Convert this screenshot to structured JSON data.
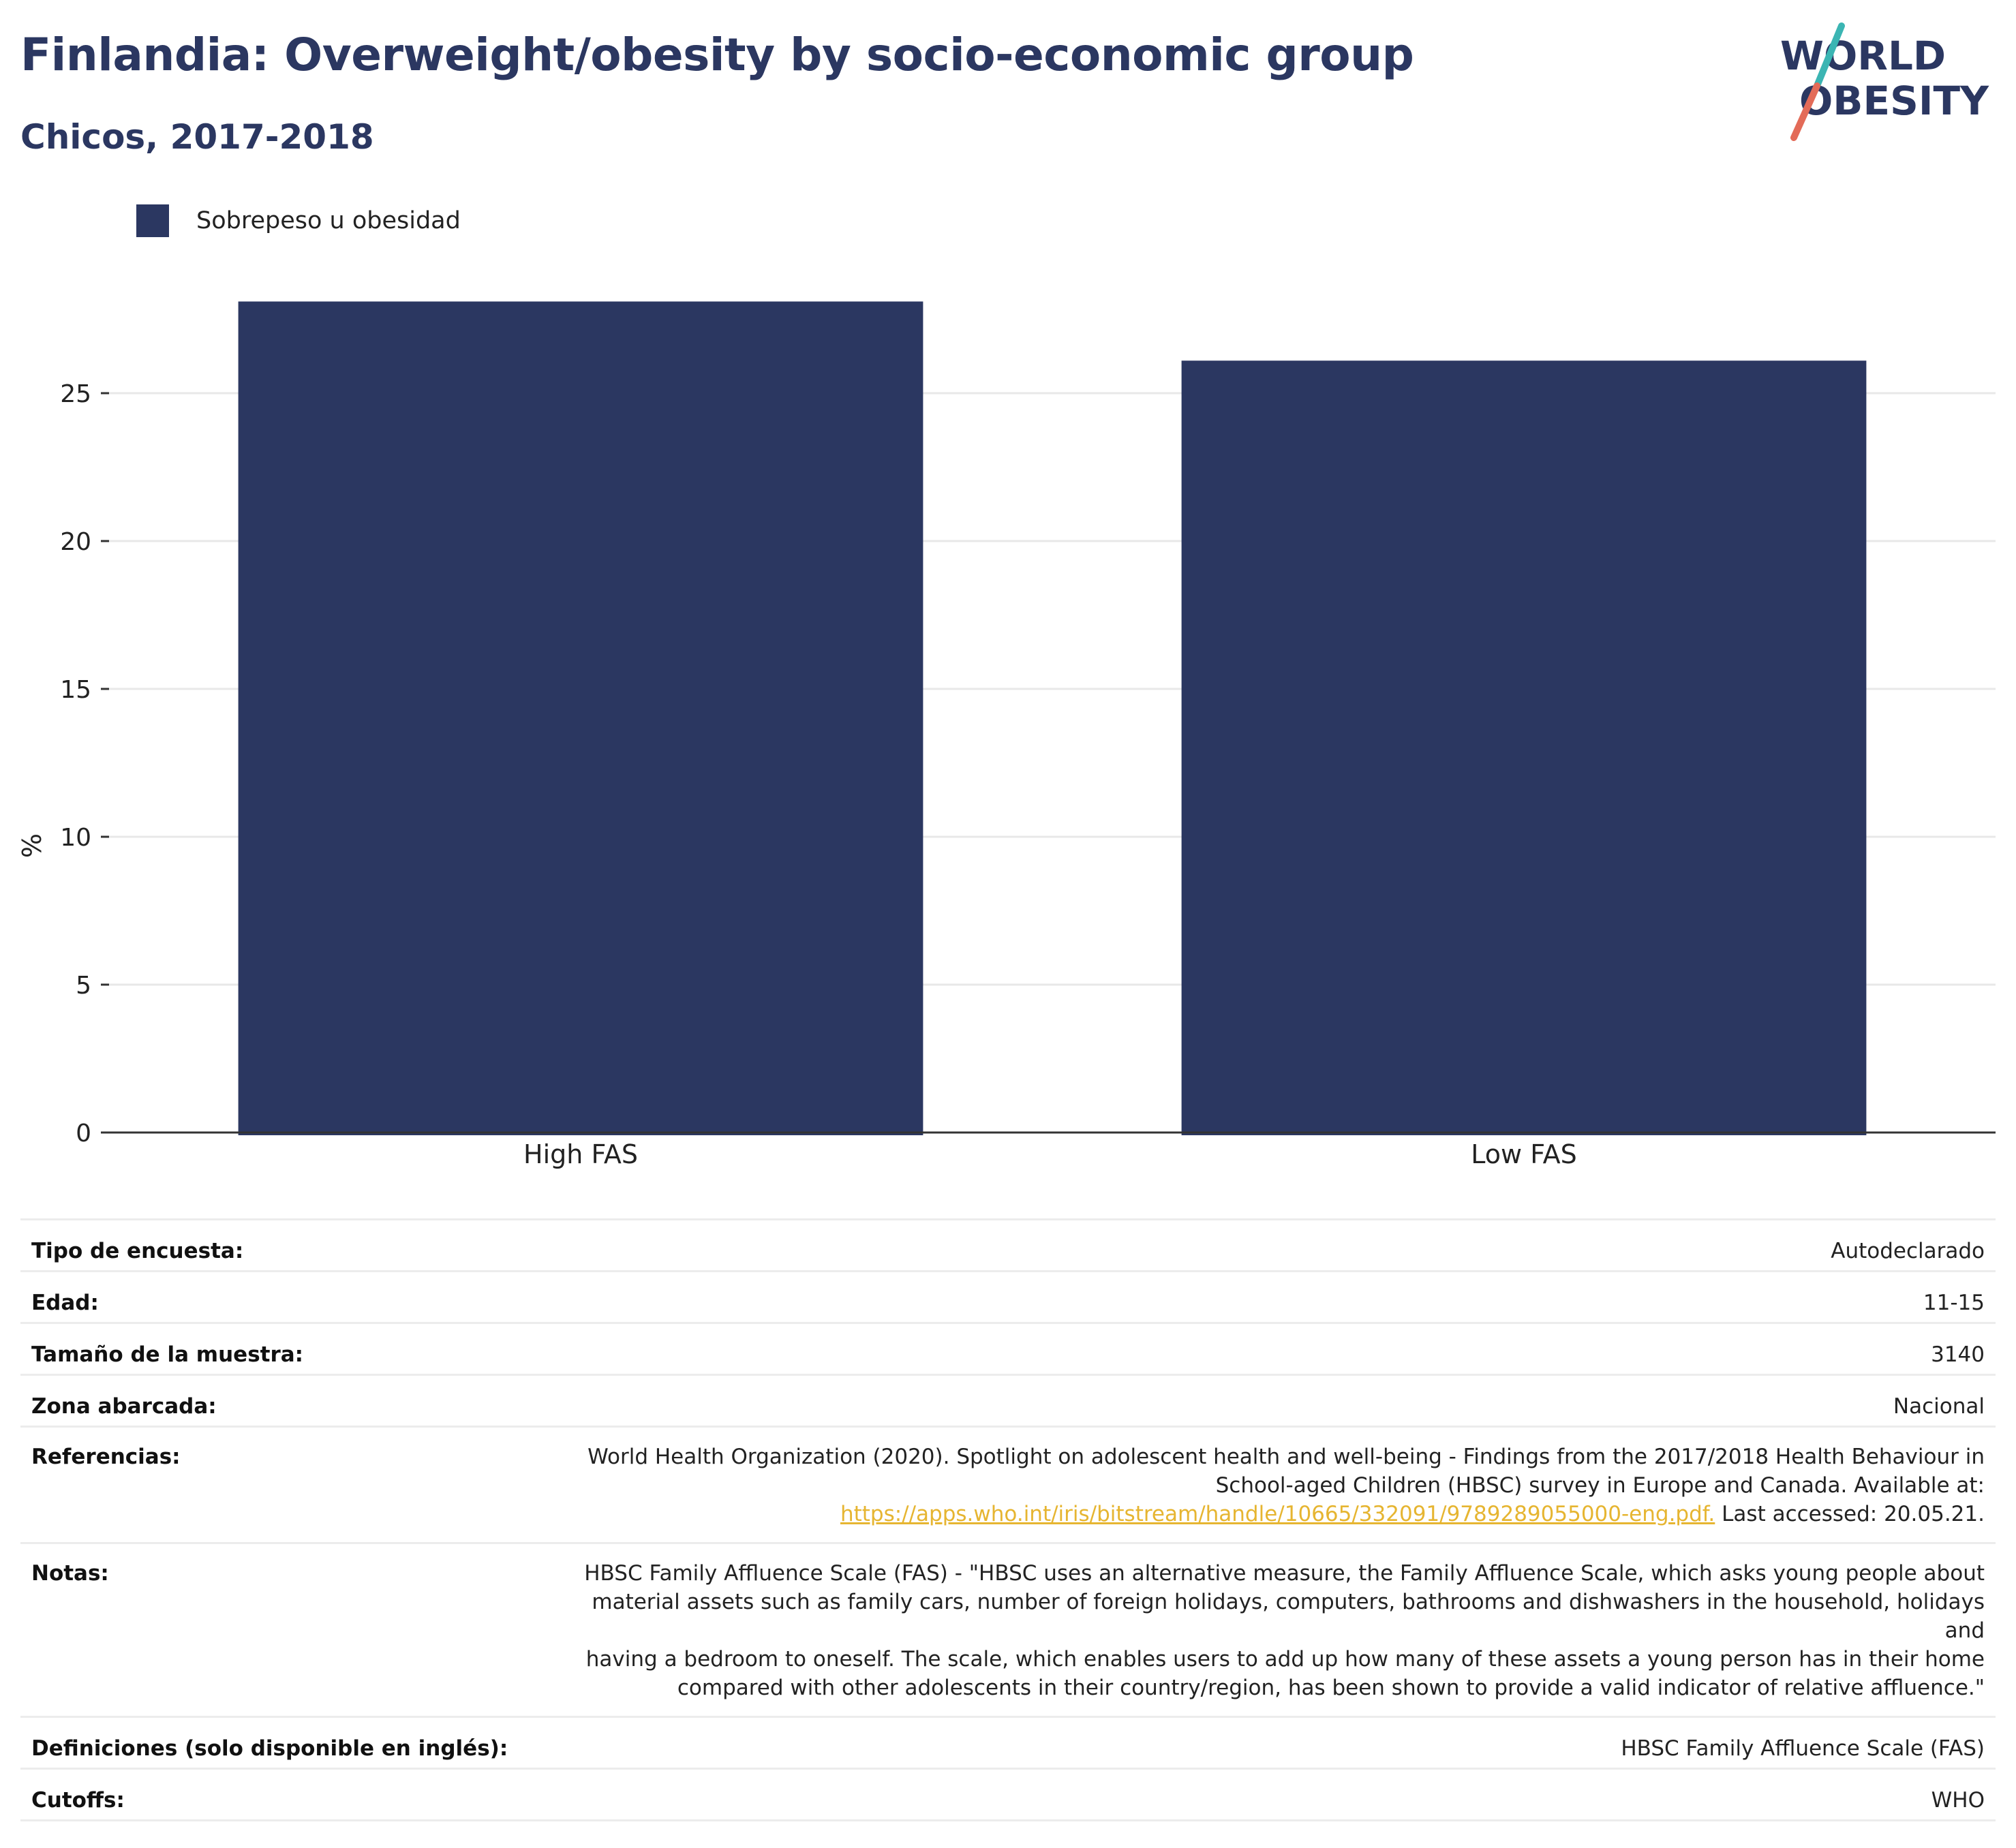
{
  "header": {
    "title": "Finlandia: Overweight/obesity by socio-economic group",
    "subtitle": "Chicos, 2017-2018"
  },
  "logo": {
    "line1": "WORLD",
    "line2": "OBESITY",
    "text_color": "#2b3761",
    "slash_top_color": "#3bb5b3",
    "slash_bottom_color": "#e36b58"
  },
  "chart_data": {
    "type": "bar",
    "categories": [
      "High FAS",
      "Low FAS"
    ],
    "series": [
      {
        "name": "Sobrepeso u obesidad",
        "values": [
          28.1,
          26.1
        ],
        "color": "#2b3761"
      }
    ],
    "xlabel": "",
    "ylabel": "%",
    "ylim": [
      0,
      30
    ],
    "yticks": [
      0,
      5,
      10,
      15,
      20,
      25
    ],
    "grid": true,
    "legend_position": "top-left"
  },
  "info": {
    "survey_type": {
      "label": "Tipo de encuesta:",
      "value": "Autodeclarado"
    },
    "age": {
      "label": "Edad:",
      "value": "11-15"
    },
    "sample_size": {
      "label": "Tamaño de la muestra:",
      "value": "3140"
    },
    "area": {
      "label": "Zona abarcada:",
      "value": "Nacional"
    },
    "references": {
      "label": "Referencias:",
      "line1": "World Health Organization (2020). Spotlight on adolescent health and well-being - Findings from the 2017/2018 Health Behaviour in",
      "line2": "School-aged Children (HBSC) survey in Europe and Canada. Available at:",
      "link": "https://apps.who.int/iris/bitstream/handle/10665/332091/9789289055000-eng.pdf.",
      "after_link": " Last accessed: 20.05.21."
    },
    "notes": {
      "label": "Notas:",
      "line1": "HBSC Family Affluence Scale (FAS) - \"HBSC uses an alternative measure, the Family Affluence Scale, which asks young people about",
      "line2": "material assets such as family cars, number of foreign holidays, computers, bathrooms and dishwashers in the household, holidays and",
      "line3": "having a bedroom to oneself. The scale, which enables users to add up how many of these assets a young person has in their home",
      "line4": "compared with other adolescents in their country/region, has been shown to provide a valid indicator of relative affluence.\""
    },
    "definitions": {
      "label": "Definiciones (solo disponible en inglés):",
      "value": "HBSC Family Affluence Scale (FAS)"
    },
    "cutoffs": {
      "label": "Cutoffs:",
      "value": "WHO"
    }
  }
}
